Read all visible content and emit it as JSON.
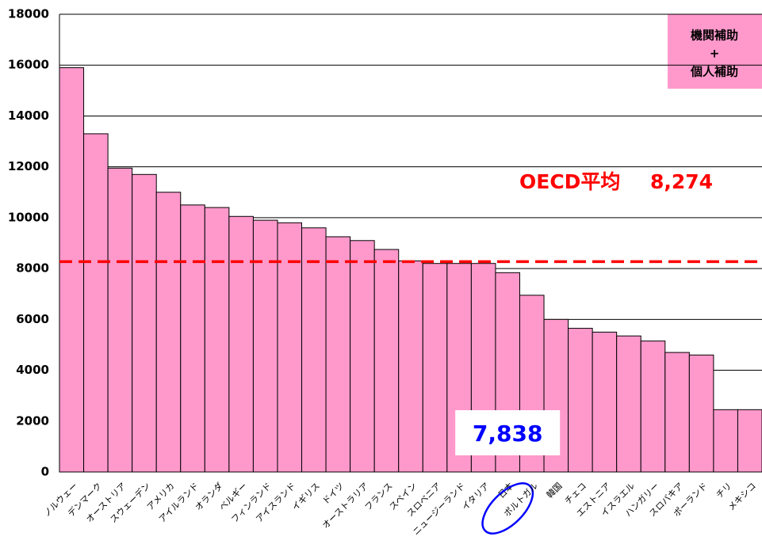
{
  "chart_data": {
    "type": "bar",
    "categories": [
      "ノルウェー",
      "デンマーク",
      "オーストリア",
      "スウェーデン",
      "アメリカ",
      "アイルランド",
      "オランダ",
      "ベルギー",
      "フィンランド",
      "アイスランド",
      "イギリス",
      "ドイツ",
      "オーストラリア",
      "フランス",
      "スペイン",
      "スロベニア",
      "ニュージーランド",
      "イタリア",
      "日本",
      "ポルトガル",
      "韓国",
      "チェコ",
      "エストニア",
      "イスラエル",
      "ハンガリー",
      "スロバキア",
      "ポーランド",
      "チリ",
      "メキシコ"
    ],
    "values": [
      15900,
      13300,
      11950,
      11700,
      11000,
      10500,
      10400,
      10050,
      9900,
      9800,
      9600,
      9250,
      9100,
      8750,
      8300,
      8200,
      8200,
      8200,
      7838,
      6950,
      6000,
      5650,
      5500,
      5350,
      5150,
      4700,
      4600,
      2450,
      2450
    ],
    "value_labels": [
      null,
      null,
      null,
      null,
      null,
      null,
      null,
      null,
      null,
      null,
      null,
      null,
      null,
      null,
      null,
      null,
      null,
      null,
      "7,838",
      null,
      null,
      null,
      null,
      null,
      null,
      null,
      null,
      null,
      null
    ],
    "color": "#ff99cc",
    "ylim": [
      0,
      18000
    ],
    "yticks": [
      0,
      2000,
      4000,
      6000,
      8000,
      10000,
      12000,
      14000,
      16000,
      18000
    ],
    "grid": true,
    "average_label": "OECD平均",
    "average": {
      "value": 8274,
      "label": "8,274"
    },
    "average_color": "#ff0000",
    "note_lines": [
      "機関補助",
      "+",
      "個人補助"
    ]
  }
}
